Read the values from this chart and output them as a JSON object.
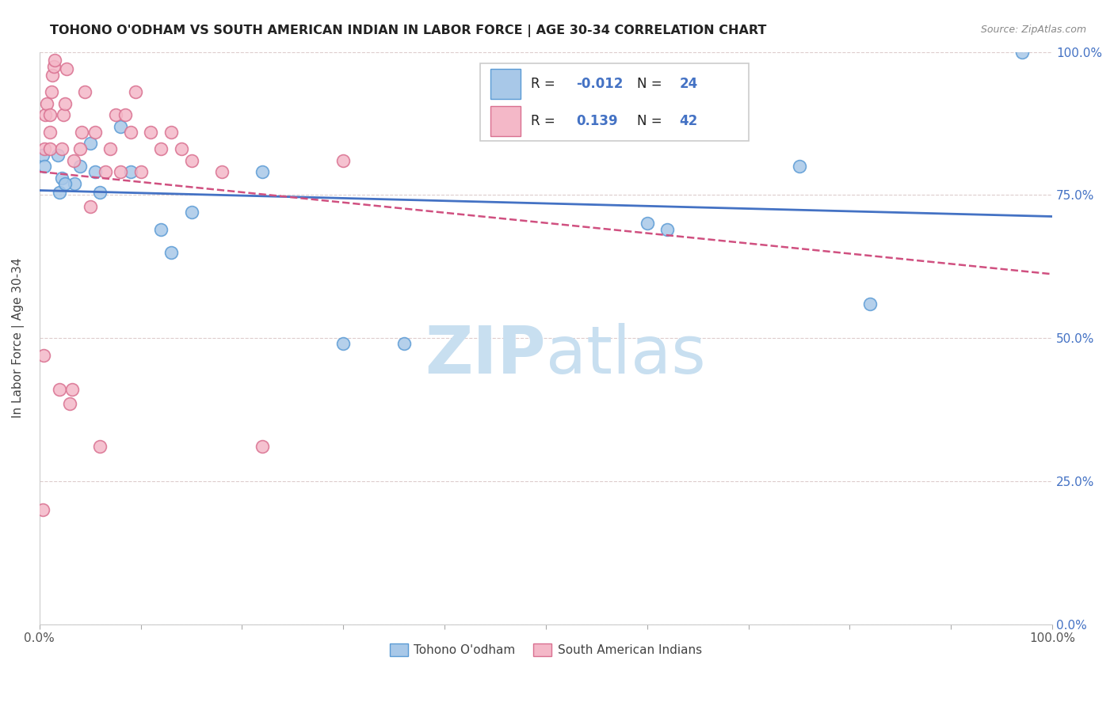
{
  "title": "TOHONO O'ODHAM VS SOUTH AMERICAN INDIAN IN LABOR FORCE | AGE 30-34 CORRELATION CHART",
  "source": "Source: ZipAtlas.com",
  "ylabel": "In Labor Force | Age 30-34",
  "y_ticks_right": [
    0.0,
    0.25,
    0.5,
    0.75,
    1.0
  ],
  "y_tick_labels_right": [
    "0.0%",
    "25.0%",
    "50.0%",
    "75.0%",
    "100.0%"
  ],
  "blue_R": -0.012,
  "blue_N": 24,
  "pink_R": 0.139,
  "pink_N": 42,
  "blue_fill": "#a8c8e8",
  "blue_edge": "#5b9bd5",
  "pink_fill": "#f4b8c8",
  "pink_edge": "#d97090",
  "blue_line": "#4472c4",
  "pink_line": "#d05080",
  "watermark_color": "#c8dff0",
  "legend_label_blue": "Tohono O'odham",
  "legend_label_pink": "South American Indians",
  "blue_points_x": [
    0.003,
    0.005,
    0.018,
    0.022,
    0.035,
    0.04,
    0.05,
    0.055,
    0.08,
    0.09,
    0.12,
    0.13,
    0.15,
    0.22,
    0.3,
    0.36,
    0.02,
    0.025,
    0.06,
    0.6,
    0.62,
    0.75,
    0.82,
    0.97
  ],
  "blue_points_y": [
    0.82,
    0.8,
    0.82,
    0.78,
    0.77,
    0.8,
    0.84,
    0.79,
    0.87,
    0.79,
    0.69,
    0.65,
    0.72,
    0.79,
    0.49,
    0.49,
    0.755,
    0.77,
    0.755,
    0.7,
    0.69,
    0.8,
    0.56,
    1.0
  ],
  "pink_points_x": [
    0.003,
    0.004,
    0.005,
    0.006,
    0.007,
    0.01,
    0.01,
    0.01,
    0.012,
    0.013,
    0.014,
    0.015,
    0.02,
    0.022,
    0.024,
    0.025,
    0.027,
    0.03,
    0.032,
    0.034,
    0.04,
    0.042,
    0.045,
    0.05,
    0.055,
    0.06,
    0.065,
    0.07,
    0.075,
    0.08,
    0.085,
    0.09,
    0.095,
    0.1,
    0.11,
    0.12,
    0.13,
    0.14,
    0.15,
    0.18,
    0.22,
    0.3
  ],
  "pink_points_y": [
    0.2,
    0.47,
    0.83,
    0.89,
    0.91,
    0.83,
    0.86,
    0.89,
    0.93,
    0.96,
    0.975,
    0.985,
    0.41,
    0.83,
    0.89,
    0.91,
    0.97,
    0.385,
    0.41,
    0.81,
    0.83,
    0.86,
    0.93,
    0.73,
    0.86,
    0.31,
    0.79,
    0.83,
    0.89,
    0.79,
    0.89,
    0.86,
    0.93,
    0.79,
    0.86,
    0.83,
    0.86,
    0.83,
    0.81,
    0.79,
    0.31,
    0.81
  ]
}
